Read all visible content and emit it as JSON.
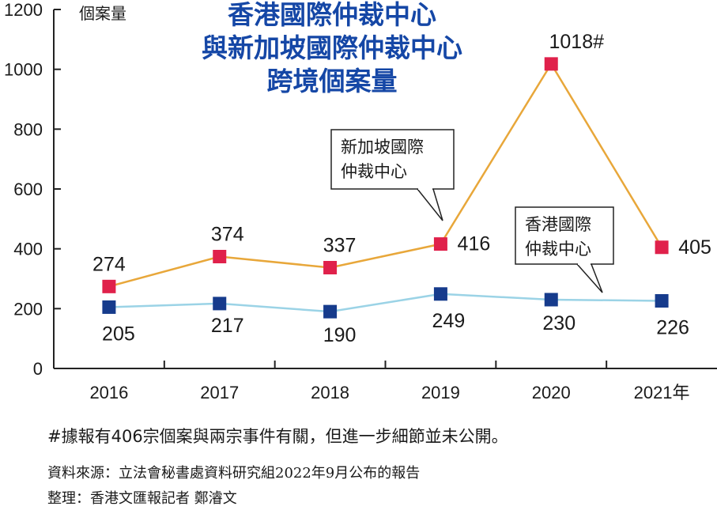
{
  "chart_data": {
    "type": "line",
    "title_lines": [
      "香港國際仲裁中心",
      "與新加坡國際仲裁中心",
      "跨境個案量"
    ],
    "ylabel": "個案量",
    "ylim": [
      0,
      1200
    ],
    "yticks": [
      0,
      200,
      400,
      600,
      800,
      1000,
      1200
    ],
    "categories": [
      "2016",
      "2017",
      "2018",
      "2019",
      "2020",
      "2021年"
    ],
    "series": [
      {
        "name_lines": [
          "新加坡國際",
          "仲裁中心"
        ],
        "values": [
          274,
          374,
          337,
          416,
          1018,
          405
        ],
        "labels": [
          "274",
          "374",
          "337",
          "416",
          "1018#",
          "405"
        ],
        "line_color": "#E8A73A",
        "marker_color": "#E0214B"
      },
      {
        "name_lines": [
          "香港國際",
          "仲裁中心"
        ],
        "values": [
          205,
          217,
          190,
          249,
          230,
          226
        ],
        "labels": [
          "205",
          "217",
          "190",
          "249",
          "230",
          "226"
        ],
        "line_color": "#9BD3E6",
        "marker_color": "#163B8C"
      }
    ],
    "title_color": "#1547A6"
  },
  "footnote": "#據報有406宗個案與兩宗事件有關，但進一步細節並未公開。",
  "source": "資料來源：立法會秘書處資料研究組2022年9月公布的報告",
  "credit": "整理：香港文匯報記者 鄭濬文"
}
